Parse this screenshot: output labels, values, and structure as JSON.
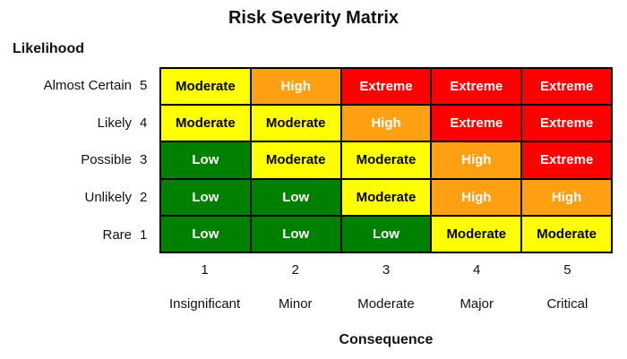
{
  "title": "Risk Severity Matrix",
  "axes": {
    "y_label": "Likelihood",
    "x_label": "Consequence"
  },
  "likelihood_rows": [
    {
      "label": "Almost Certain",
      "value": "5"
    },
    {
      "label": "Likely",
      "value": "4"
    },
    {
      "label": "Possible",
      "value": "3"
    },
    {
      "label": "Unlikely",
      "value": "2"
    },
    {
      "label": "Rare",
      "value": "1"
    }
  ],
  "consequence_cols": [
    {
      "value": "1",
      "label": "Insignificant"
    },
    {
      "value": "2",
      "label": "Minor"
    },
    {
      "value": "3",
      "label": "Moderate"
    },
    {
      "value": "4",
      "label": "Major"
    },
    {
      "value": "5",
      "label": "Critical"
    }
  ],
  "matrix": [
    [
      "Moderate",
      "High",
      "Extreme",
      "Extreme",
      "Extreme"
    ],
    [
      "Moderate",
      "Moderate",
      "High",
      "Extreme",
      "Extreme"
    ],
    [
      "Low",
      "Moderate",
      "Moderate",
      "High",
      "Extreme"
    ],
    [
      "Low",
      "Low",
      "Moderate",
      "High",
      "High"
    ],
    [
      "Low",
      "Low",
      "Low",
      "Moderate",
      "Moderate"
    ]
  ],
  "colors": {
    "low": "#008000",
    "moderate": "#FFFF00",
    "high": "#FFA013",
    "extreme": "#FF0000",
    "grid_line": "#000000",
    "text_on_moderate": "#000000",
    "text_on_other": "#FFFFFF"
  },
  "chart_data": {
    "type": "heatmap",
    "title": "Risk Severity Matrix",
    "xlabel": "Consequence",
    "ylabel": "Likelihood",
    "x_categories": [
      "1 Insignificant",
      "2 Minor",
      "3 Moderate",
      "4 Major",
      "5 Critical"
    ],
    "y_categories": [
      "5 Almost Certain",
      "4 Likely",
      "3 Possible",
      "2 Unlikely",
      "1 Rare"
    ],
    "values": [
      [
        "Moderate",
        "High",
        "Extreme",
        "Extreme",
        "Extreme"
      ],
      [
        "Moderate",
        "Moderate",
        "High",
        "Extreme",
        "Extreme"
      ],
      [
        "Low",
        "Moderate",
        "Moderate",
        "High",
        "Extreme"
      ],
      [
        "Low",
        "Low",
        "Moderate",
        "High",
        "High"
      ],
      [
        "Low",
        "Low",
        "Low",
        "Moderate",
        "Moderate"
      ]
    ],
    "value_color_map": {
      "Low": "#008000",
      "Moderate": "#FFFF00",
      "High": "#FFA013",
      "Extreme": "#FF0000"
    },
    "legend": "none",
    "grid": "on"
  }
}
